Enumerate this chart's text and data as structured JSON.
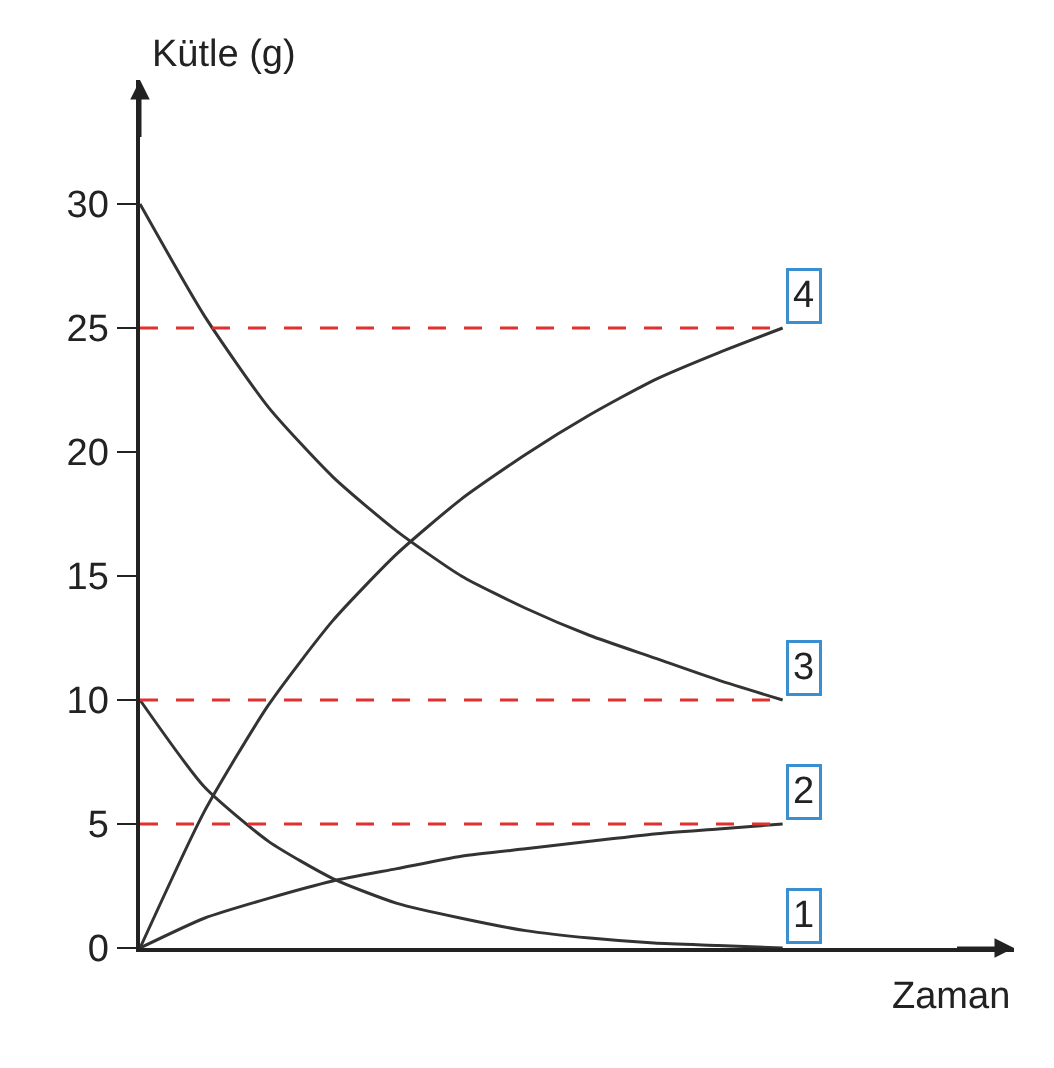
{
  "chart_data": {
    "type": "line",
    "ylabel": "Kütle (g)",
    "xlabel": "Zaman",
    "categories": [
      null,
      null,
      null,
      null,
      null,
      null,
      null,
      null,
      null,
      null,
      null
    ],
    "series": [
      {
        "name": "1",
        "color": "#333333",
        "values": [
          10,
          6.5,
          4.3,
          2.8,
          1.8,
          1.2,
          0.7,
          0.4,
          0.2,
          0.1,
          0
        ]
      },
      {
        "name": "2",
        "color": "#333333",
        "values": [
          0,
          1.2,
          2.0,
          2.7,
          3.2,
          3.7,
          4.0,
          4.3,
          4.6,
          4.8,
          5
        ]
      },
      {
        "name": "3",
        "color": "#333333",
        "values": [
          30,
          25.5,
          21.8,
          19,
          16.8,
          15,
          13.7,
          12.6,
          11.7,
          10.8,
          10
        ]
      },
      {
        "name": "4",
        "color": "#333333",
        "values": [
          0,
          5.5,
          9.8,
          13.2,
          15.9,
          18.1,
          19.9,
          21.5,
          22.9,
          24,
          25
        ]
      }
    ],
    "ylim": [
      0,
      35
    ],
    "yticks": [
      0,
      5,
      10,
      15,
      20,
      25,
      30
    ],
    "ref_lines": [
      {
        "axis": "y",
        "value": 25,
        "color": "#e03030",
        "line_style": "dashed"
      },
      {
        "axis": "y",
        "value": 10,
        "color": "#e03030",
        "line_style": "dashed"
      },
      {
        "axis": "y",
        "value": 5,
        "color": "#e03030",
        "line_style": "dashed"
      }
    ],
    "grid": false,
    "tick_labels": "y",
    "marker": "none",
    "line_style": "solid"
  }
}
